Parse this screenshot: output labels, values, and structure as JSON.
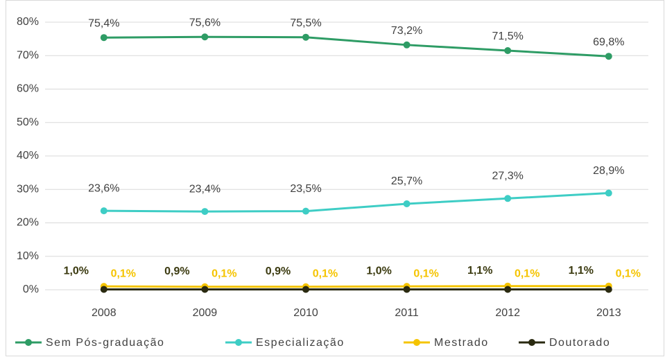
{
  "chart_data": {
    "type": "line",
    "categories": [
      "2008",
      "2009",
      "2010",
      "2011",
      "2012",
      "2013"
    ],
    "series": [
      {
        "name": "Sem Pós-graduação",
        "color": "#2e9c65",
        "label_color": "#404040",
        "values": [
          75.4,
          75.6,
          75.5,
          73.2,
          71.5,
          69.8
        ],
        "value_labels": [
          "75,4%",
          "75,6%",
          "75,5%",
          "73,2%",
          "71,5%",
          "69,8%"
        ]
      },
      {
        "name": "Especialização",
        "color": "#3ecdc5",
        "label_color": "#404040",
        "values": [
          23.6,
          23.4,
          23.5,
          25.7,
          27.3,
          28.9
        ],
        "value_labels": [
          "23,6%",
          "23,4%",
          "23,5%",
          "25,7%",
          "27,3%",
          "28,9%"
        ]
      },
      {
        "name": "Mestrado",
        "color": "#f5c400",
        "label_color": "#3b3a10",
        "values": [
          1.0,
          0.9,
          0.9,
          1.0,
          1.1,
          1.1
        ],
        "value_labels": [
          "1,0%",
          "0,9%",
          "0,9%",
          "1,0%",
          "1,1%",
          "1,1%"
        ]
      },
      {
        "name": "Doutorado",
        "color": "#2a2a10",
        "label_color": "#f5c400",
        "values": [
          0.1,
          0.1,
          0.1,
          0.1,
          0.1,
          0.1
        ],
        "value_labels": [
          "0,1%",
          "0,1%",
          "0,1%",
          "0,1%",
          "0,1%",
          "0,1%"
        ]
      }
    ],
    "ylim": [
      0,
      80
    ],
    "yticks": [
      {
        "value": 0,
        "label": "0%"
      },
      {
        "value": 10,
        "label": "10%"
      },
      {
        "value": 20,
        "label": "20%"
      },
      {
        "value": 30,
        "label": "30%"
      },
      {
        "value": 40,
        "label": "40%"
      },
      {
        "value": 50,
        "label": "50%"
      },
      {
        "value": 60,
        "label": "60%"
      },
      {
        "value": 70,
        "label": "70%"
      },
      {
        "value": 80,
        "label": "80%"
      }
    ],
    "grid": true,
    "legend": "bottom"
  }
}
